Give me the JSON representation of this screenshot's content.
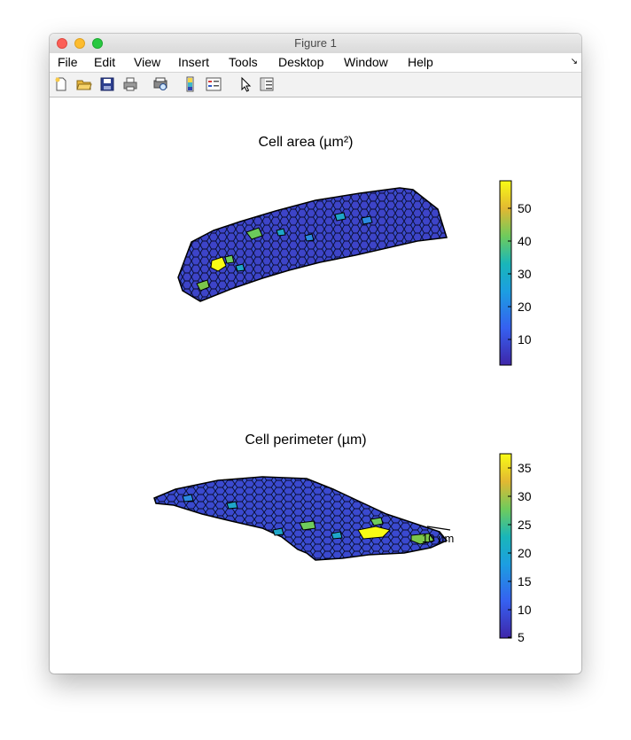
{
  "window": {
    "title": "Figure 1"
  },
  "menu": [
    "File",
    "Edit",
    "View",
    "Insert",
    "Tools",
    "Desktop",
    "Window",
    "Help"
  ],
  "menu_arrow": "↘",
  "toolbar_icons": [
    "new-figure-icon",
    "open-file-icon",
    "save-icon",
    "print-icon",
    "print-preview-icon",
    "colorbar-icon",
    "legend-icon",
    "pointer-icon",
    "property-inspector-icon"
  ],
  "plots": [
    {
      "title": "Cell area (µm²)",
      "colorbar_ticks": [
        "50",
        "40",
        "30",
        "20",
        "10"
      ]
    },
    {
      "title": "Cell perimeter (µm)",
      "colorbar_ticks": [
        "35",
        "30",
        "25",
        "20",
        "15",
        "10",
        "5"
      ],
      "scale_bar_label": "10 µm"
    }
  ],
  "colors": {
    "low": "#3b2bb5",
    "mid": "#1fa6c9",
    "high": "#f9f91a",
    "accent_green": "#7cc74a"
  }
}
